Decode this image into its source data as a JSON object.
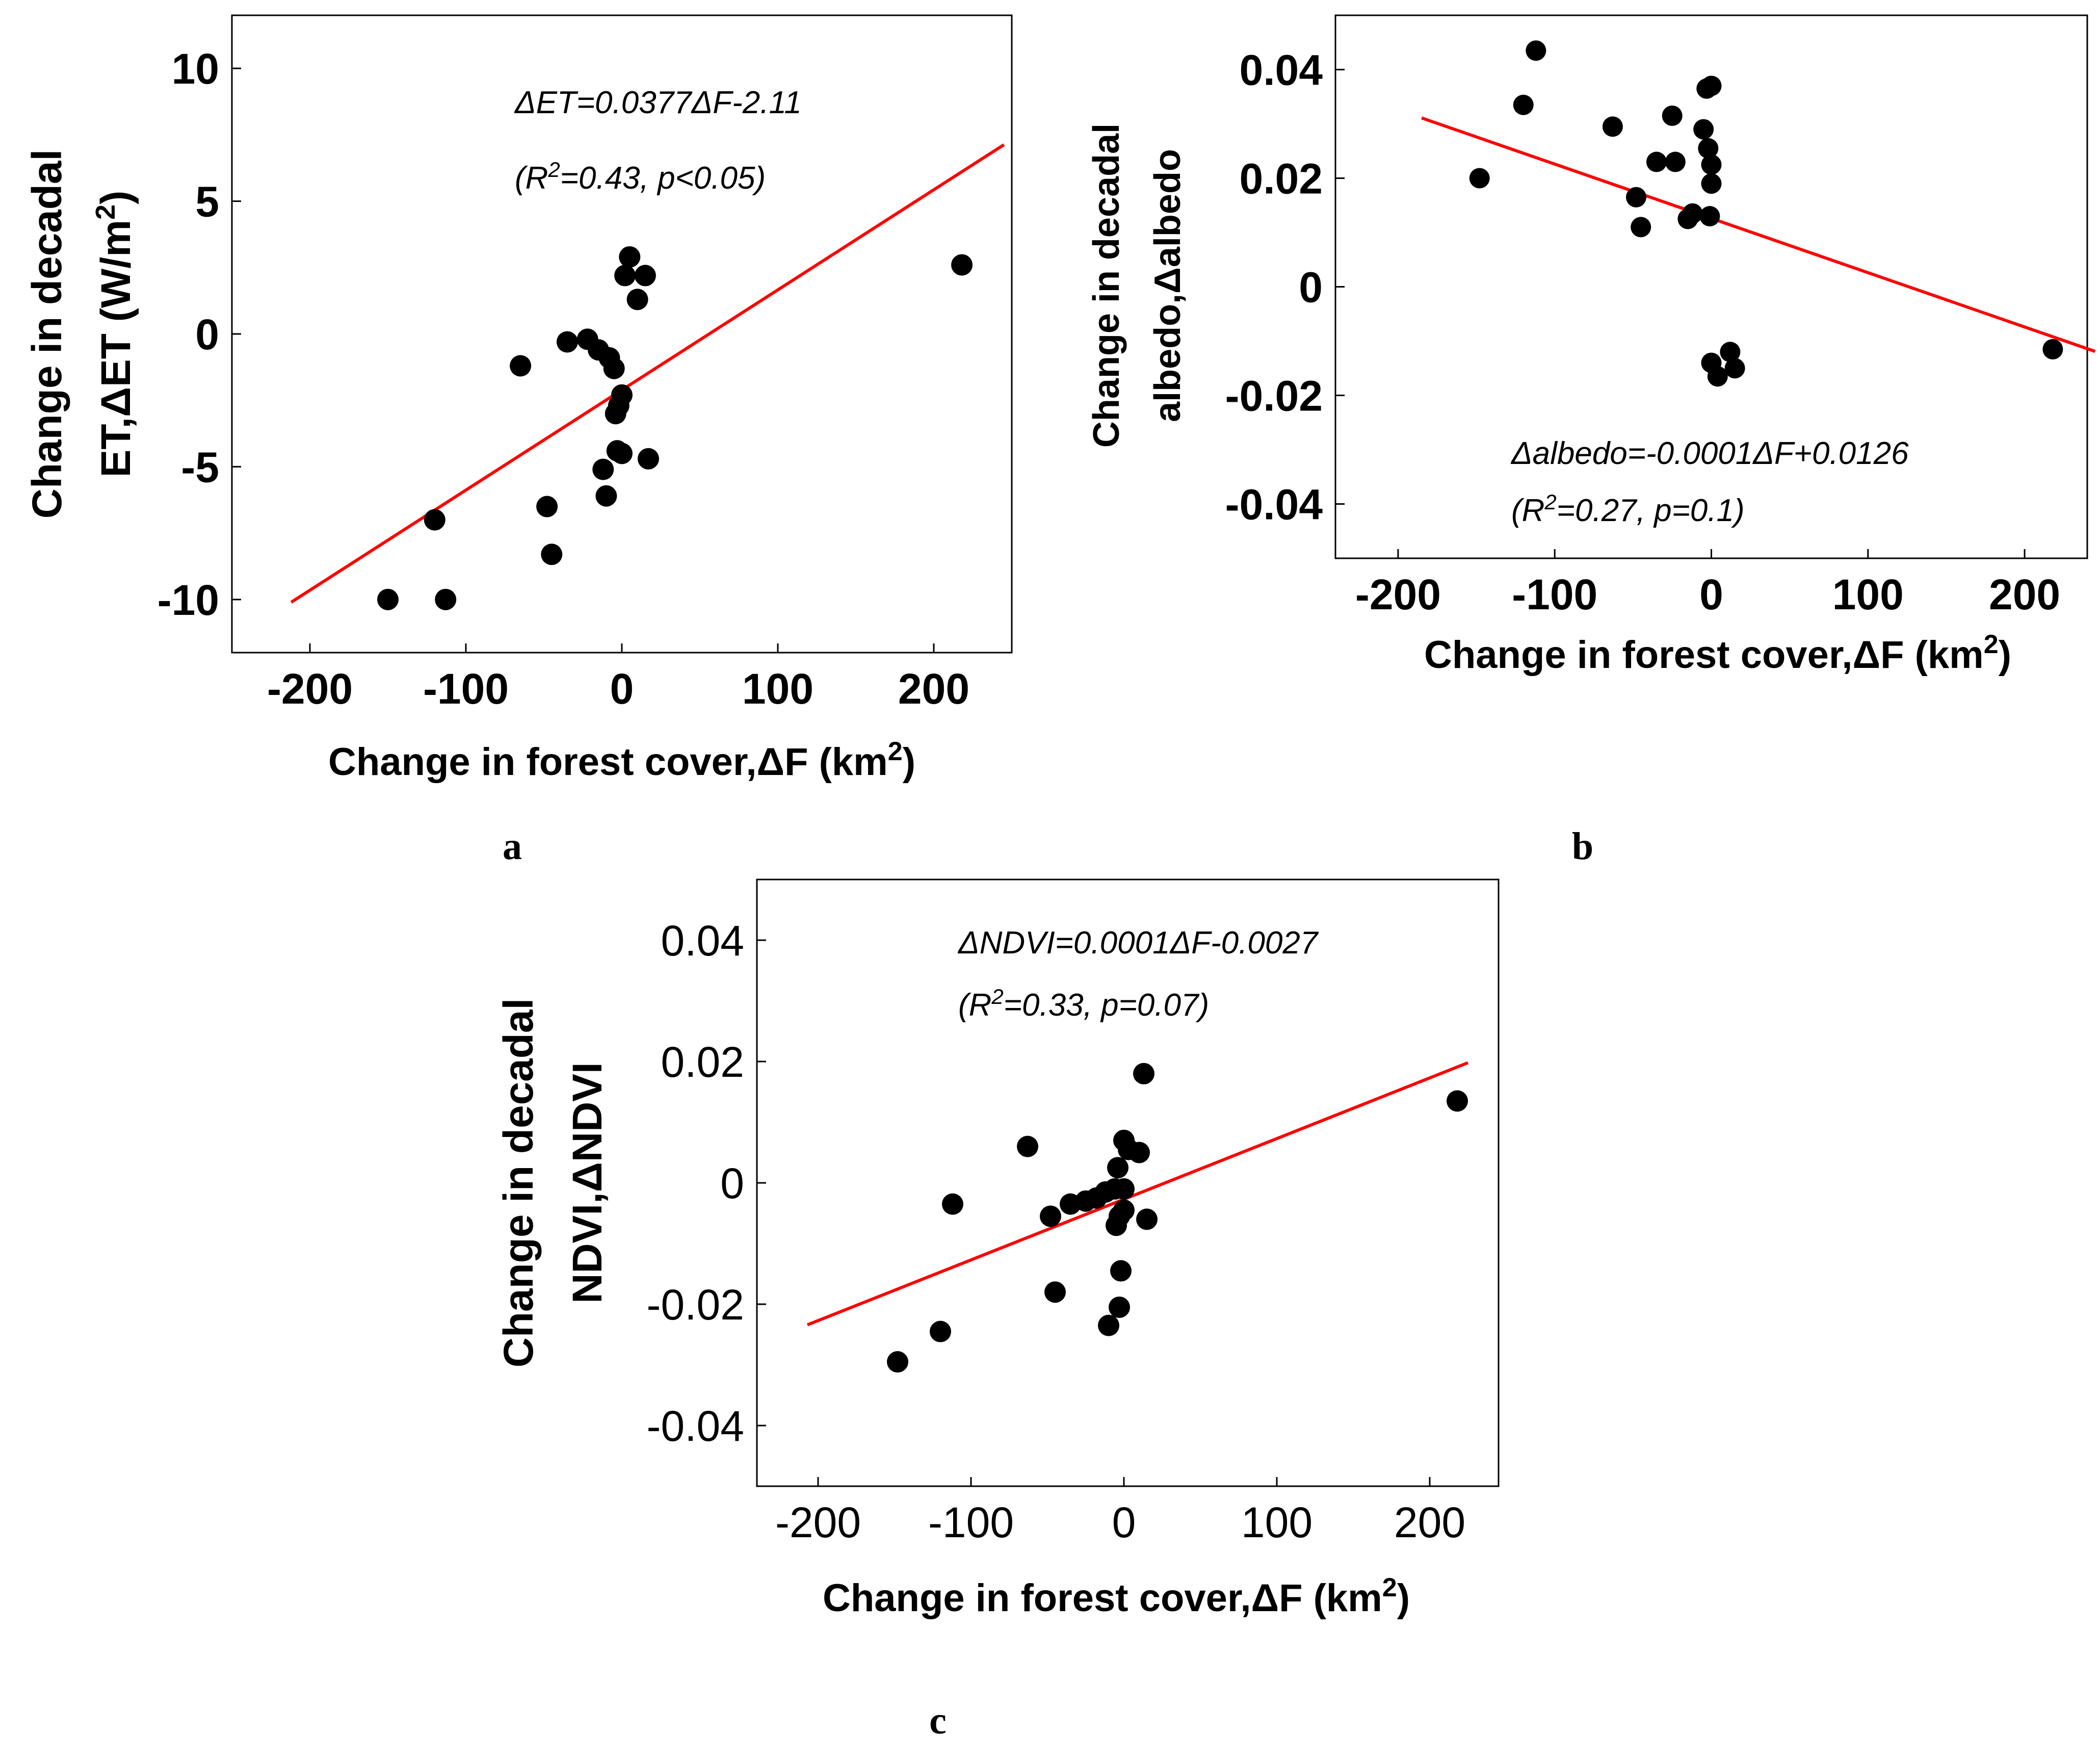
{
  "chart_data": [
    {
      "id": "a",
      "type": "scatter",
      "panel_label": "a",
      "xlabel": "Change in forest cover,ΔF (km",
      "xlabel_sup": "2",
      "xlabel_end": ")",
      "ylabel_line1": "Change in decadal",
      "ylabel_line2": "ET,ΔET (W/m",
      "ylabel_sup": "2",
      "ylabel_end": ")",
      "equation": "ΔET=0.0377ΔF-2.11",
      "stats_pre": "(R",
      "stats_sup": "2",
      "stats_post": "=0.43, p<0.05)",
      "xlim": [
        -250,
        250
      ],
      "ylim": [
        -12,
        12
      ],
      "xticks": [
        -200,
        -100,
        0,
        100,
        200
      ],
      "xtick_labels": [
        "-200",
        "-100",
        "0",
        "100",
        "200"
      ],
      "yticks": [
        -10,
        -5,
        0,
        5,
        10
      ],
      "ytick_labels": [
        "-10",
        "-5",
        "0",
        "5",
        "10"
      ],
      "fit": {
        "slope": 0.0377,
        "intercept": -2.11,
        "x_range": [
          -212,
          245
        ]
      },
      "points": [
        [
          -150,
          -10
        ],
        [
          -113,
          -10
        ],
        [
          -120,
          -7
        ],
        [
          -65,
          -1.2
        ],
        [
          -48,
          -6.5
        ],
        [
          -45,
          -8.3
        ],
        [
          -35,
          -0.3
        ],
        [
          -22,
          -0.2
        ],
        [
          -15,
          -0.6
        ],
        [
          -12,
          -5.1
        ],
        [
          -10,
          -6.1
        ],
        [
          -8,
          -0.9
        ],
        [
          -5,
          -1.3
        ],
        [
          -4,
          -3
        ],
        [
          -3,
          -4.4
        ],
        [
          -2,
          -2.7
        ],
        [
          0,
          -2.3
        ],
        [
          0,
          -4.5
        ],
        [
          2,
          2.2
        ],
        [
          5,
          2.9
        ],
        [
          10,
          1.3
        ],
        [
          15,
          2.2
        ],
        [
          17,
          -4.7
        ],
        [
          218,
          2.6
        ]
      ]
    },
    {
      "id": "b",
      "type": "scatter",
      "panel_label": "b",
      "xlabel": "Change in forest cover,ΔF (km",
      "xlabel_sup": "2",
      "xlabel_end": ")",
      "ylabel_line1": "Change in decadal",
      "ylabel_line2": "albedo,Δalbedo",
      "ylabel_sup": "",
      "ylabel_end": "",
      "equation": "Δalbedo=-0.0001ΔF+0.0126",
      "stats_pre": "(R",
      "stats_sup": "2",
      "stats_post": "=0.27, p=0.1)",
      "xlim": [
        -240,
        240
      ],
      "ylim": [
        -0.05,
        0.05
      ],
      "xticks": [
        -200,
        -100,
        0,
        100,
        200
      ],
      "xtick_labels": [
        "-200",
        "-100",
        "0",
        "100",
        "200"
      ],
      "yticks": [
        -0.04,
        -0.02,
        0,
        0.02,
        0.04
      ],
      "ytick_labels": [
        "-0.04",
        "-0.02",
        "0",
        "0.02",
        "0.04"
      ],
      "fit": {
        "slope": -0.0001,
        "intercept": 0.0126,
        "x_range": [
          -185,
          245
        ]
      },
      "points": [
        [
          -148,
          0.02
        ],
        [
          -120,
          0.0335
        ],
        [
          -112,
          0.0435
        ],
        [
          -63,
          0.0295
        ],
        [
          -48,
          0.0165
        ],
        [
          -45,
          0.011
        ],
        [
          -35,
          0.023
        ],
        [
          -25,
          0.0315
        ],
        [
          -23,
          0.023
        ],
        [
          -15,
          0.0125
        ],
        [
          -12,
          0.0135
        ],
        [
          -5,
          0.029
        ],
        [
          -3,
          0.0365
        ],
        [
          -2,
          0.0255
        ],
        [
          -1,
          0.013
        ],
        [
          0,
          0.0225
        ],
        [
          0,
          0.019
        ],
        [
          0,
          0.037
        ],
        [
          0,
          -0.014
        ],
        [
          4,
          -0.0165
        ],
        [
          12,
          -0.012
        ],
        [
          15,
          -0.015
        ],
        [
          218,
          -0.0115
        ]
      ]
    },
    {
      "id": "c",
      "type": "scatter",
      "panel_label": "c",
      "xlabel": "Change in forest cover,ΔF (km",
      "xlabel_sup": "2",
      "xlabel_end": ")",
      "ylabel_line1": "Change in decadal",
      "ylabel_line2": "NDVI,ΔNDVI",
      "ylabel_sup": "",
      "ylabel_end": "",
      "equation": "ΔNDVI=0.0001ΔF-0.0027",
      "stats_pre": "(R",
      "stats_sup": "2",
      "stats_post": "=0.33, p=0.07)",
      "xlim": [
        -240,
        245
      ],
      "ylim": [
        -0.05,
        0.05
      ],
      "xticks": [
        -200,
        -100,
        0,
        100,
        200
      ],
      "xtick_labels": [
        "-200",
        "-100",
        "0",
        "100",
        "200"
      ],
      "yticks": [
        -0.04,
        -0.02,
        0,
        0.02,
        0.04
      ],
      "ytick_labels": [
        "-0.04",
        "-0.02",
        "0",
        "0.02",
        "0.04"
      ],
      "fit": {
        "slope": 0.0001,
        "intercept": -0.0027,
        "x_range": [
          -207,
          225
        ]
      },
      "points": [
        [
          -148,
          -0.0295
        ],
        [
          -120,
          -0.0245
        ],
        [
          -112,
          -0.0035
        ],
        [
          -63,
          0.006
        ],
        [
          -48,
          -0.0055
        ],
        [
          -45,
          -0.018
        ],
        [
          -35,
          -0.0035
        ],
        [
          -25,
          -0.003
        ],
        [
          -18,
          -0.0025
        ],
        [
          -12,
          -0.0015
        ],
        [
          -10,
          -0.0235
        ],
        [
          -6,
          -0.001
        ],
        [
          -5,
          -0.007
        ],
        [
          -4,
          0.0025
        ],
        [
          -3,
          -0.0055
        ],
        [
          -3,
          -0.0205
        ],
        [
          -2,
          -0.0145
        ],
        [
          0,
          0.007
        ],
        [
          0,
          -0.001
        ],
        [
          0,
          -0.0045
        ],
        [
          3,
          0.0055
        ],
        [
          10,
          0.005
        ],
        [
          13,
          0.018
        ],
        [
          15,
          -0.006
        ],
        [
          218,
          0.0135
        ]
      ]
    }
  ]
}
